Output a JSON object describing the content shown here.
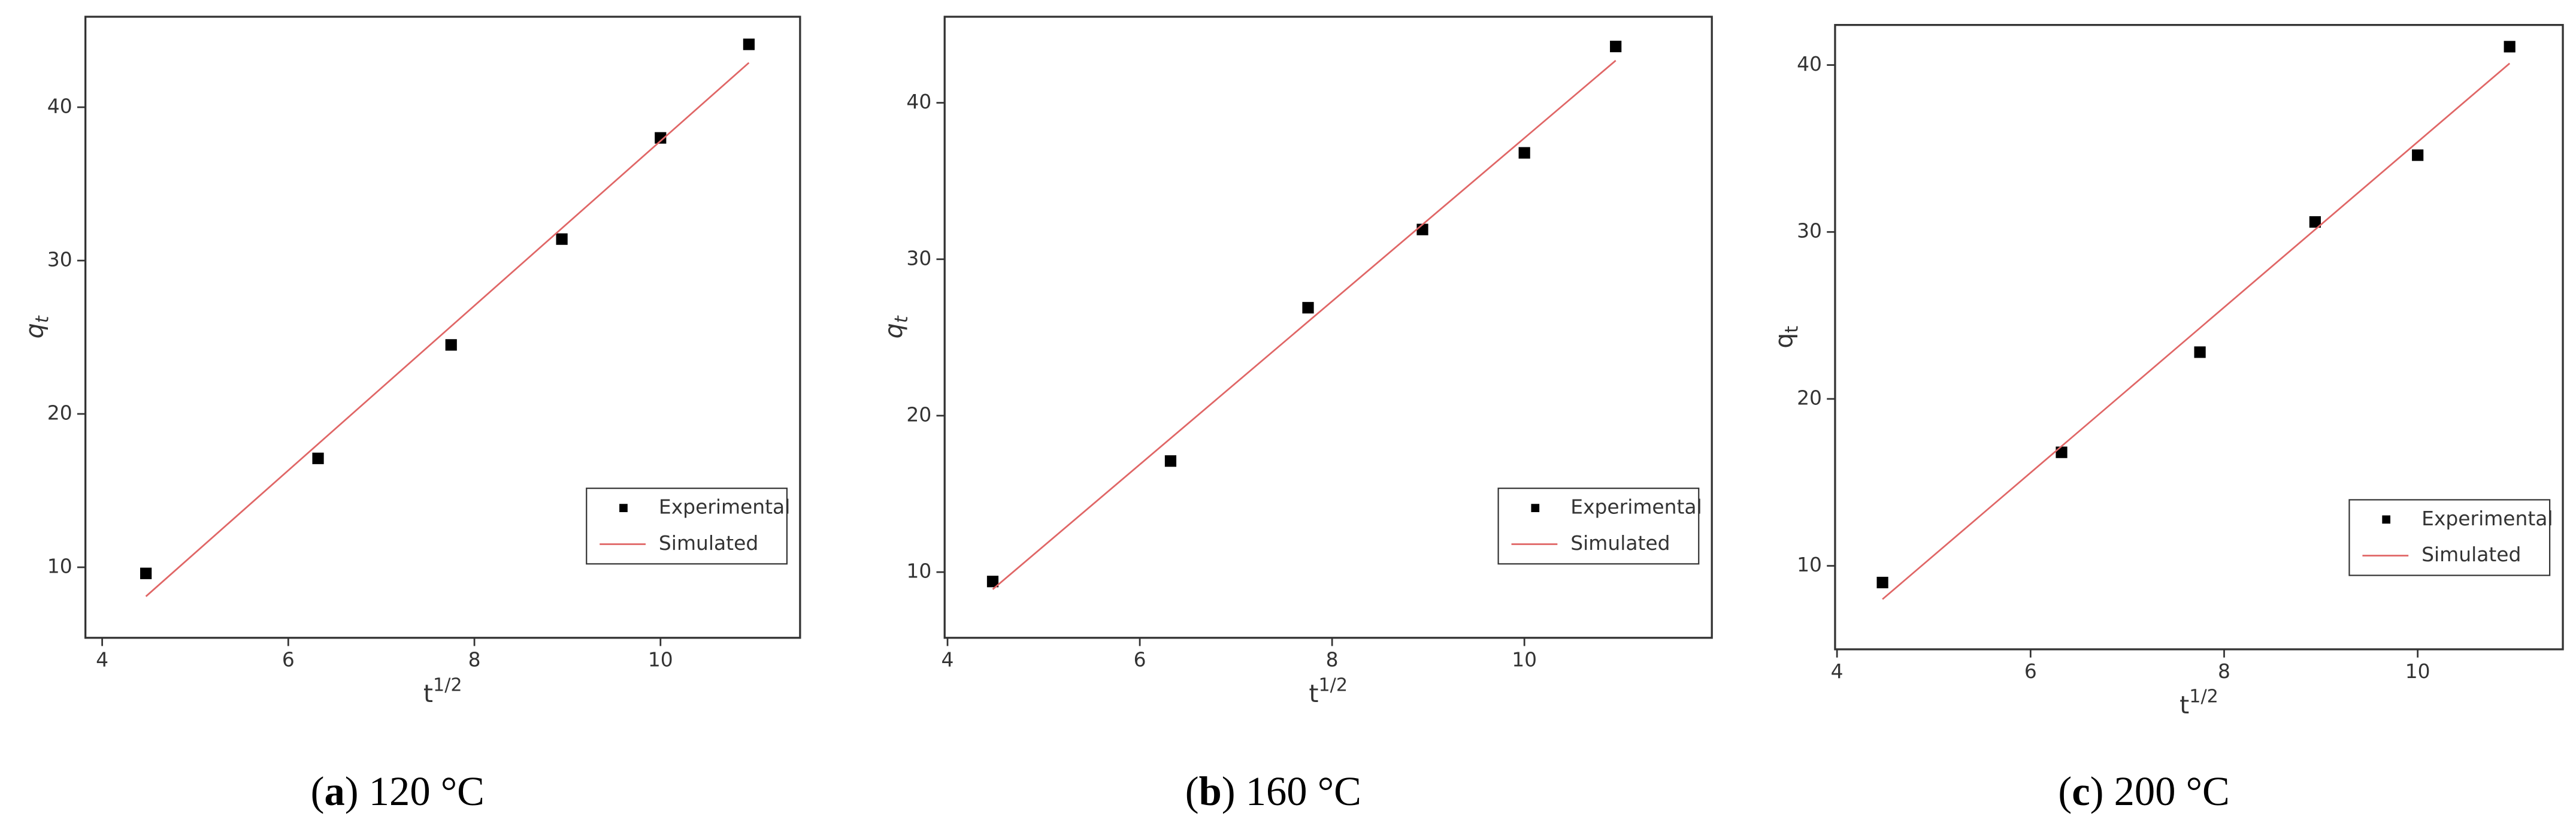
{
  "chart_data": [
    {
      "type": "scatter",
      "caption": "(a) 120 °C",
      "x_label": {
        "base": "t",
        "sup": "1/2"
      },
      "y_label": {
        "base": "q",
        "sub": "t",
        "italic": true
      },
      "xlim": [
        3.82,
        11.5
      ],
      "ylim": [
        5.4,
        45.9
      ],
      "xticks": [
        4,
        6,
        8,
        10
      ],
      "yticks": [
        10,
        20,
        30,
        40
      ],
      "legend": "lower right",
      "series": [
        {
          "name": "Experimental",
          "color": "#000000",
          "x": [
            4.47,
            6.32,
            7.75,
            8.94,
            10,
            10.95
          ],
          "values": [
            9.6,
            17.1,
            24.5,
            31.4,
            38,
            44.1
          ]
        },
        {
          "name": "Simulated",
          "color": "#e06666",
          "x": [
            4.47,
            10.95
          ],
          "values": [
            8.1,
            42.9
          ]
        }
      ]
    },
    {
      "type": "scatter",
      "caption": "(b) 160 °C",
      "x_label": {
        "base": "t",
        "sup": "1/2"
      },
      "y_label": {
        "base": "q",
        "sub": "t",
        "italic": true
      },
      "xlim": [
        3.97,
        11.95
      ],
      "ylim": [
        5.8,
        45.5
      ],
      "xticks": [
        4,
        6,
        8,
        10
      ],
      "yticks": [
        10,
        20,
        30,
        40
      ],
      "legend": "lower right",
      "series": [
        {
          "name": "Experimental",
          "color": "#000000",
          "x": [
            4.47,
            6.32,
            7.75,
            8.94,
            10,
            10.95
          ],
          "values": [
            9.4,
            17.1,
            26.9,
            31.9,
            36.8,
            43.6
          ]
        },
        {
          "name": "Simulated",
          "color": "#e06666",
          "x": [
            4.47,
            10.95
          ],
          "values": [
            8.9,
            42.7
          ]
        }
      ]
    },
    {
      "type": "scatter",
      "caption": "(c) 200 °C",
      "x_label": {
        "base": "t",
        "sup": "1/2"
      },
      "y_label": {
        "base": "q",
        "sub": "t",
        "italic": false
      },
      "xlim": [
        3.98,
        11.5
      ],
      "ylim": [
        5.0,
        42.4
      ],
      "xticks": [
        4,
        6,
        8,
        10
      ],
      "yticks": [
        10,
        20,
        30,
        40
      ],
      "legend": "lower right",
      "series": [
        {
          "name": "Experimental",
          "color": "#000000",
          "x": [
            4.47,
            6.32,
            7.75,
            8.94,
            10,
            10.95
          ],
          "values": [
            9.0,
            16.8,
            22.8,
            30.6,
            34.6,
            41.1
          ]
        },
        {
          "name": "Simulated",
          "color": "#e06666",
          "x": [
            4.47,
            10.95
          ],
          "values": [
            8.0,
            40.1
          ]
        }
      ]
    }
  ]
}
